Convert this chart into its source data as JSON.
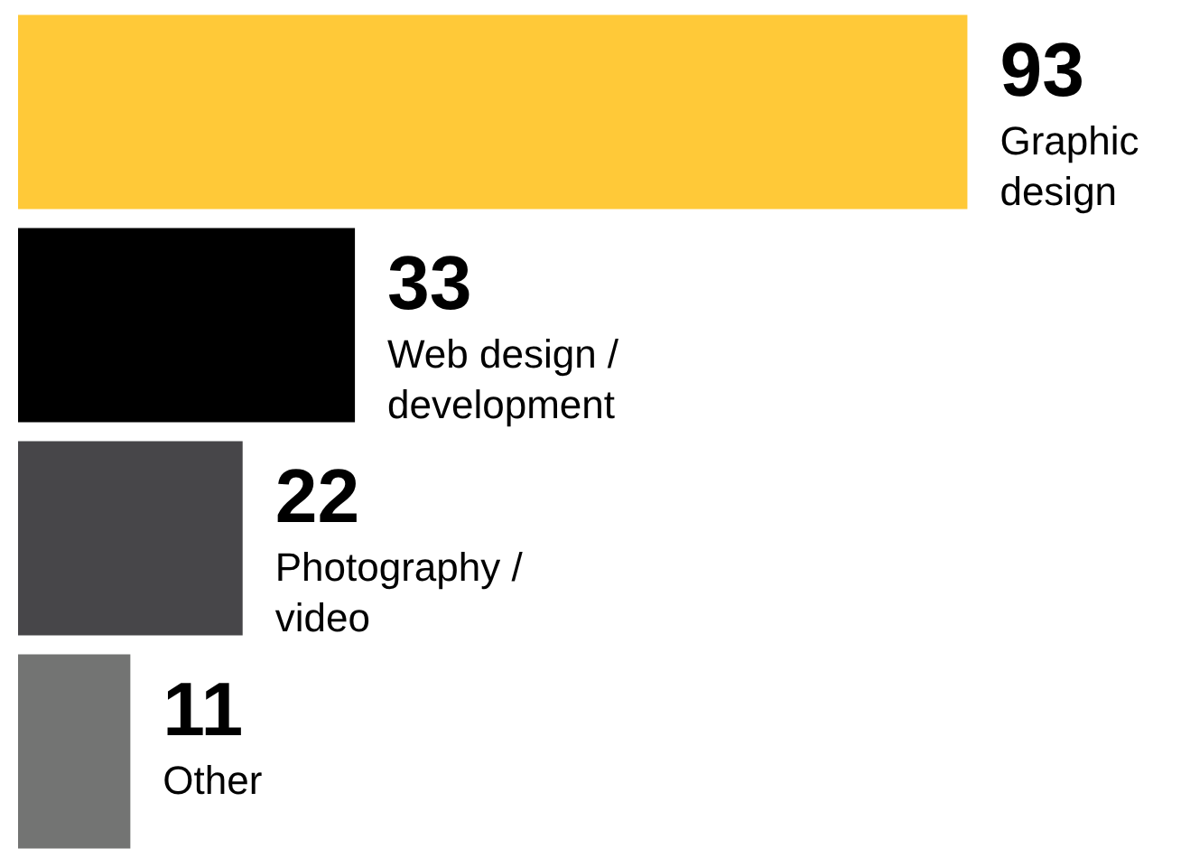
{
  "chart_data": {
    "type": "bar",
    "orientation": "horizontal",
    "data_labels": true,
    "categories": [
      "Graphic design",
      "Web design / development",
      "Photography / video",
      "Other"
    ],
    "values": [
      93,
      33,
      22,
      11
    ],
    "colors": [
      "#ffc938",
      "#000000",
      "#474649",
      "#737473"
    ]
  }
}
